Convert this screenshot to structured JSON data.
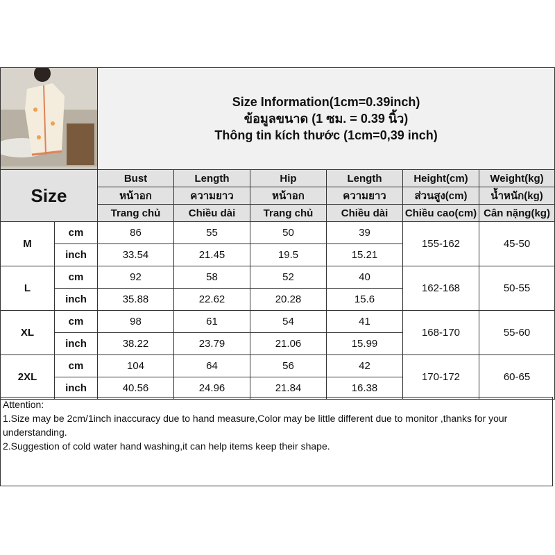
{
  "title": {
    "en": "Size Information(1cm=0.39inch)",
    "th": "ข้อมูลขนาด (1 ซม. = 0.39 นิ้ว)",
    "vi": "Thông tin kích thước (1cm=0,39 inch)"
  },
  "size_label": "Size",
  "headers": [
    [
      "Bust",
      "หน้าอก",
      "Trang chủ"
    ],
    [
      "Length",
      "ความยาว",
      "Chiều dài"
    ],
    [
      "Hip",
      "หน้าอก",
      "Trang chủ"
    ],
    [
      "Length",
      "ความยาว",
      "Chiều dài"
    ],
    [
      "Height(cm)",
      "ส่วนสูง(cm)",
      "Chiều cao(cm)"
    ],
    [
      "Weight(kg)",
      "น้ำหนัก(kg)",
      "Cân nặng(kg)"
    ]
  ],
  "units": [
    "cm",
    "inch"
  ],
  "sizes": [
    {
      "size": "M",
      "cm": [
        "86",
        "55",
        "50",
        "39"
      ],
      "inch": [
        "33.54",
        "21.45",
        "19.5",
        "15.21"
      ],
      "height": "155-162",
      "weight": "45-50"
    },
    {
      "size": "L",
      "cm": [
        "92",
        "58",
        "52",
        "40"
      ],
      "inch": [
        "35.88",
        "22.62",
        "20.28",
        "15.6"
      ],
      "height": "162-168",
      "weight": "50-55"
    },
    {
      "size": "XL",
      "cm": [
        "98",
        "61",
        "54",
        "41"
      ],
      "inch": [
        "38.22",
        "23.79",
        "21.06",
        "15.99"
      ],
      "height": "168-170",
      "weight": "55-60"
    },
    {
      "size": "2XL",
      "cm": [
        "104",
        "64",
        "56",
        "42"
      ],
      "inch": [
        "40.56",
        "24.96",
        "21.84",
        "16.38"
      ],
      "height": "170-172",
      "weight": "60-65"
    }
  ],
  "attention": {
    "heading": "Attention:",
    "notes": [
      "1.Size may be 2cm/1inch inaccuracy due to hand measure,Color may be little different due to monitor ,thanks for your understanding.",
      "2.Suggestion of cold water hand washing,it can help items keep their shape."
    ]
  }
}
